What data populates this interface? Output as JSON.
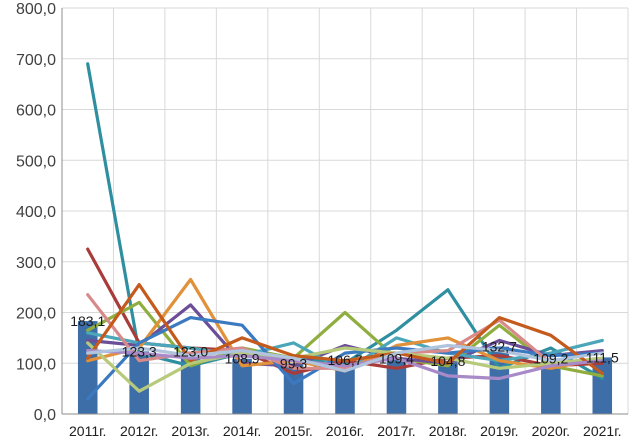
{
  "chart_data": {
    "type": "bar",
    "title": "",
    "xlabel": "",
    "ylabel": "",
    "categories": [
      "2011г.",
      "2012г.",
      "2013г.",
      "2014г.",
      "2015г.",
      "2016г.",
      "2017г.",
      "2018г.",
      "2019г.",
      "2020г.",
      "2021г."
    ],
    "ylim": [
      0,
      800
    ],
    "yticks": [
      "0,0",
      "100,0",
      "200,0",
      "300,0",
      "400,0",
      "500,0",
      "600,0",
      "700,0",
      "800,0"
    ],
    "grid": true,
    "legend": "none",
    "bars": {
      "color": "#3e6ea8",
      "values": [
        183.1,
        123.3,
        123.0,
        108.9,
        99.3,
        106.7,
        109.4,
        104.8,
        132.7,
        109.2,
        111.5
      ],
      "labels": [
        "183,1",
        "123,3",
        "123,0",
        "108,9",
        "99,3",
        "106,7",
        "109,4",
        "104,8",
        "132,7",
        "109,2",
        "111,5"
      ]
    },
    "series": [
      {
        "color": "#2f8fa0",
        "values": [
          690,
          120,
          95,
          120,
          110,
          100,
          165,
          245,
          90,
          130,
          70
        ]
      },
      {
        "color": "#a83c3a",
        "values": [
          325,
          140,
          130,
          125,
          80,
          105,
          90,
          110,
          115,
          95,
          100
        ]
      },
      {
        "color": "#8fae3f",
        "values": [
          165,
          220,
          95,
          130,
          110,
          200,
          110,
          95,
          175,
          95,
          75
        ]
      },
      {
        "color": "#6b4e97",
        "values": [
          145,
          135,
          215,
          100,
          95,
          135,
          110,
          100,
          145,
          115,
          125
        ]
      },
      {
        "color": "#4aa6b8",
        "values": [
          160,
          140,
          130,
          115,
          140,
          85,
          150,
          120,
          105,
          120,
          145
        ]
      },
      {
        "color": "#e0913a",
        "values": [
          105,
          130,
          265,
          95,
          105,
          85,
          135,
          150,
          105,
          90,
          110
        ]
      },
      {
        "color": "#3b79c0",
        "values": [
          30,
          140,
          190,
          175,
          60,
          120,
          130,
          120,
          130,
          115,
          120
        ]
      },
      {
        "color": "#d88a8a",
        "values": [
          235,
          105,
          120,
          130,
          90,
          90,
          120,
          125,
          185,
          100,
          105
        ]
      },
      {
        "color": "#b7c97a",
        "values": [
          140,
          45,
          100,
          120,
          110,
          130,
          120,
          110,
          90,
          100,
          110
        ]
      },
      {
        "color": "#c45a1c",
        "values": [
          110,
          255,
          105,
          150,
          115,
          105,
          120,
          100,
          190,
          155,
          80
        ]
      },
      {
        "color": "#a98ac9",
        "values": [
          125,
          120,
          110,
          115,
          105,
          95,
          110,
          75,
          70,
          95,
          105
        ]
      },
      {
        "color": "#b0c4de",
        "values": [
          120,
          130,
          115,
          125,
          110,
          85,
          120,
          135,
          125,
          105,
          120
        ]
      }
    ]
  }
}
